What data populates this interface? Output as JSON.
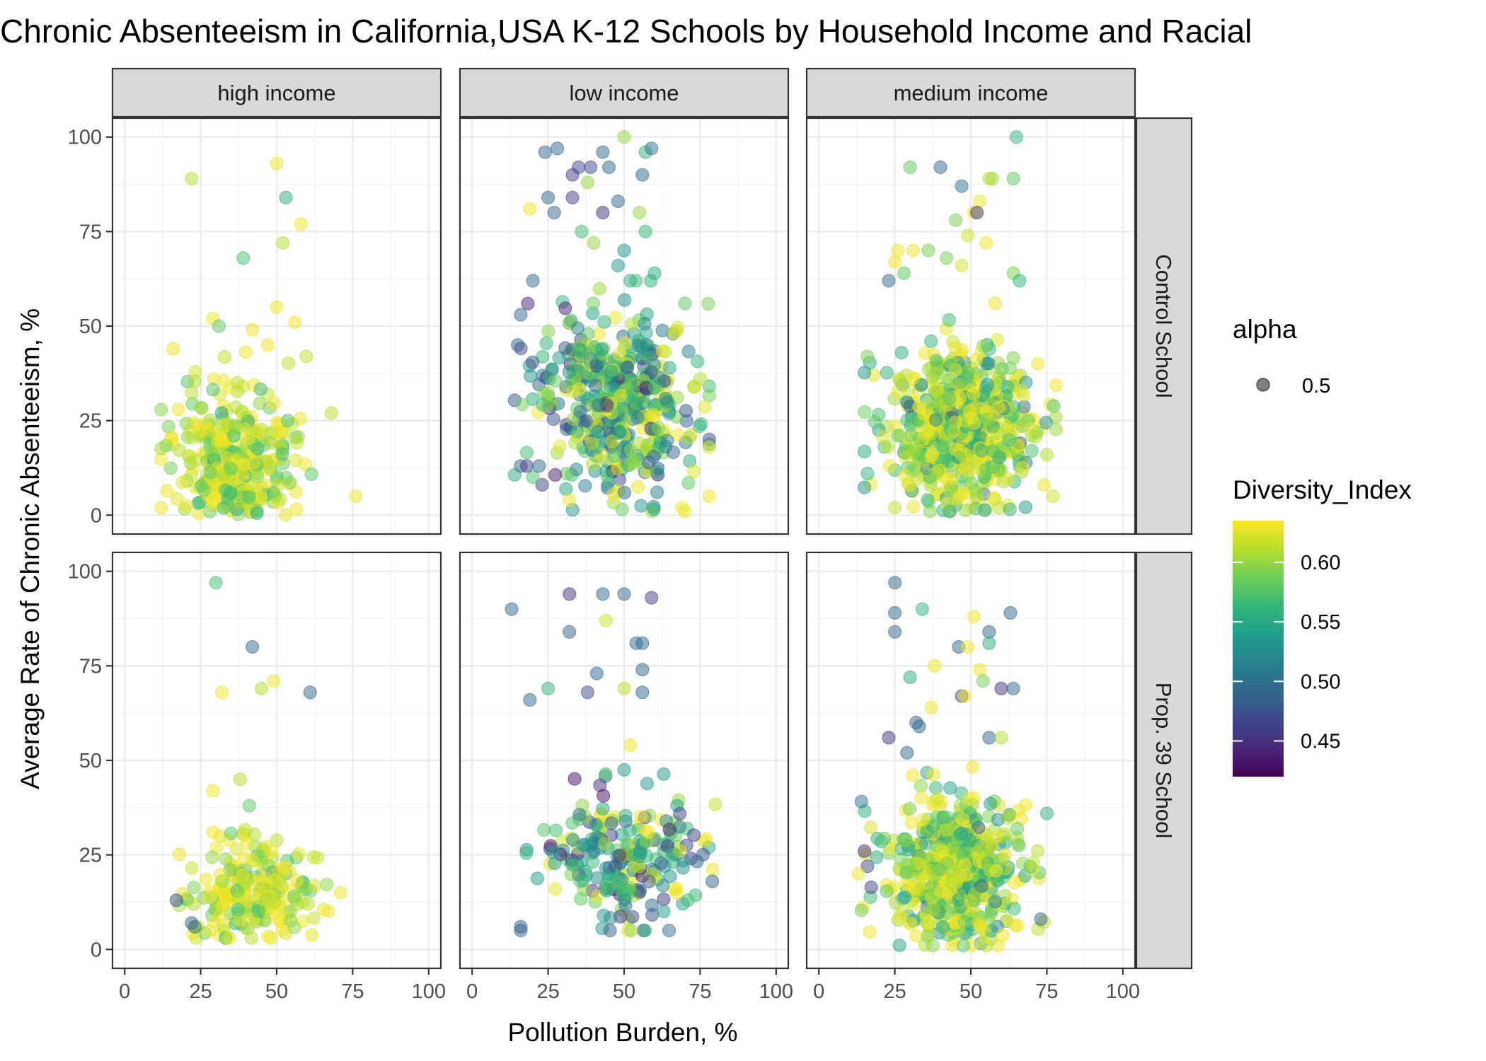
{
  "chart_data": {
    "type": "scatter",
    "title": "Chronic Absenteeism in California,USA K-12 Schools by Household Income and Racial",
    "xlabel": "Pollution Burden, %",
    "ylabel": "Average Rate of Chronic Absenteeism, %",
    "xlim": [
      -4,
      104
    ],
    "ylim": [
      -5,
      105
    ],
    "x_ticks": [
      0,
      25,
      50,
      75,
      100
    ],
    "y_ticks": [
      0,
      25,
      50,
      75,
      100
    ],
    "grid": true,
    "theme": "bw",
    "facet_columns": [
      "high income",
      "low income",
      "medium income"
    ],
    "facet_rows": [
      "Control School",
      "Prop. 39 School"
    ],
    "legend_position": "right",
    "color_scale": {
      "name": "viridis",
      "domain": [
        0.42,
        0.635
      ],
      "stops": [
        "#440154",
        "#482878",
        "#3e4989",
        "#31688e",
        "#26828e",
        "#1f9e89",
        "#35b779",
        "#6ece58",
        "#b5de2b",
        "#fde725"
      ]
    },
    "legend": {
      "alpha": {
        "title": "alpha",
        "label": "0.5"
      },
      "color": {
        "title": "Diversity_Index",
        "breaks": [
          0.45,
          0.5,
          0.55,
          0.6
        ],
        "labels": [
          "0.45",
          "0.50",
          "0.55",
          "0.60"
        ]
      }
    },
    "point_alpha": 0.5,
    "panels": [
      {
        "column": "high income",
        "row": "Control School",
        "cluster": {
          "n": 320,
          "x_mean": 36,
          "x_sd": 10,
          "x_range": [
            12,
            72
          ],
          "y_mean": 15,
          "y_sd": 9,
          "y_range": [
            0,
            50
          ],
          "c_mean": 0.612,
          "c_sd": 0.03,
          "c_range": [
            0.44,
            0.63
          ],
          "seed": 11
        },
        "points": [
          {
            "x": 22,
            "y": 89,
            "c": 0.61
          },
          {
            "x": 50,
            "y": 93,
            "c": 0.63
          },
          {
            "x": 53,
            "y": 84,
            "c": 0.55
          },
          {
            "x": 58,
            "y": 77,
            "c": 0.63
          },
          {
            "x": 52,
            "y": 72,
            "c": 0.61
          },
          {
            "x": 39,
            "y": 68,
            "c": 0.57
          },
          {
            "x": 50,
            "y": 55,
            "c": 0.63
          },
          {
            "x": 56,
            "y": 51,
            "c": 0.63
          },
          {
            "x": 29,
            "y": 52,
            "c": 0.63
          },
          {
            "x": 42,
            "y": 49,
            "c": 0.63
          },
          {
            "x": 31,
            "y": 50,
            "c": 0.58
          },
          {
            "x": 16,
            "y": 44,
            "c": 0.63
          },
          {
            "x": 47,
            "y": 45,
            "c": 0.63
          },
          {
            "x": 76,
            "y": 5,
            "c": 0.63
          },
          {
            "x": 68,
            "y": 27,
            "c": 0.61
          }
        ]
      },
      {
        "column": "low income",
        "row": "Control School",
        "cluster": {
          "n": 460,
          "x_mean": 47,
          "x_sd": 13,
          "x_range": [
            14,
            78
          ],
          "y_mean": 30,
          "y_sd": 12,
          "y_range": [
            1,
            62
          ],
          "c_mean": 0.56,
          "c_sd": 0.06,
          "c_range": [
            0.44,
            0.63
          ],
          "seed": 22
        },
        "points": [
          {
            "x": 50,
            "y": 100,
            "c": 0.6
          },
          {
            "x": 24,
            "y": 96,
            "c": 0.49
          },
          {
            "x": 28,
            "y": 97,
            "c": 0.49
          },
          {
            "x": 43,
            "y": 96,
            "c": 0.49
          },
          {
            "x": 57,
            "y": 96,
            "c": 0.56
          },
          {
            "x": 59,
            "y": 97,
            "c": 0.5
          },
          {
            "x": 35,
            "y": 92,
            "c": 0.47
          },
          {
            "x": 39,
            "y": 92,
            "c": 0.47
          },
          {
            "x": 45,
            "y": 92,
            "c": 0.49
          },
          {
            "x": 33,
            "y": 90,
            "c": 0.46
          },
          {
            "x": 38,
            "y": 88,
            "c": 0.6
          },
          {
            "x": 56,
            "y": 90,
            "c": 0.49
          },
          {
            "x": 25,
            "y": 84,
            "c": 0.49
          },
          {
            "x": 33,
            "y": 84,
            "c": 0.46
          },
          {
            "x": 48,
            "y": 83,
            "c": 0.49
          },
          {
            "x": 27,
            "y": 80,
            "c": 0.49
          },
          {
            "x": 19,
            "y": 81,
            "c": 0.63
          },
          {
            "x": 43,
            "y": 80,
            "c": 0.45
          },
          {
            "x": 55,
            "y": 80,
            "c": 0.6
          },
          {
            "x": 36,
            "y": 75,
            "c": 0.57
          },
          {
            "x": 57,
            "y": 75,
            "c": 0.56
          },
          {
            "x": 40,
            "y": 72,
            "c": 0.6
          },
          {
            "x": 50,
            "y": 70,
            "c": 0.53
          },
          {
            "x": 48,
            "y": 66,
            "c": 0.53
          },
          {
            "x": 20,
            "y": 62,
            "c": 0.49
          },
          {
            "x": 60,
            "y": 64,
            "c": 0.55
          },
          {
            "x": 70,
            "y": 56,
            "c": 0.58
          },
          {
            "x": 16,
            "y": 53,
            "c": 0.49
          },
          {
            "x": 15,
            "y": 45,
            "c": 0.48
          },
          {
            "x": 16,
            "y": 13,
            "c": 0.49
          },
          {
            "x": 18,
            "y": 13,
            "c": 0.46
          },
          {
            "x": 22,
            "y": 13,
            "c": 0.49
          },
          {
            "x": 78,
            "y": 5,
            "c": 0.63
          },
          {
            "x": 70,
            "y": 1,
            "c": 0.63
          },
          {
            "x": 69,
            "y": 2,
            "c": 0.63
          },
          {
            "x": 75,
            "y": 36,
            "c": 0.61
          }
        ]
      },
      {
        "column": "medium income",
        "row": "Control School",
        "cluster": {
          "n": 620,
          "x_mean": 47,
          "x_sd": 12,
          "x_range": [
            15,
            78
          ],
          "y_mean": 23,
          "y_sd": 10,
          "y_range": [
            1,
            60
          ],
          "c_mean": 0.6,
          "c_sd": 0.045,
          "c_range": [
            0.44,
            0.63
          ],
          "seed": 33
        },
        "points": [
          {
            "x": 65,
            "y": 100,
            "c": 0.56
          },
          {
            "x": 30,
            "y": 92,
            "c": 0.58
          },
          {
            "x": 40,
            "y": 92,
            "c": 0.49
          },
          {
            "x": 57,
            "y": 89,
            "c": 0.6
          },
          {
            "x": 56,
            "y": 89,
            "c": 0.61
          },
          {
            "x": 64,
            "y": 89,
            "c": 0.58
          },
          {
            "x": 47,
            "y": 87,
            "c": 0.5
          },
          {
            "x": 53,
            "y": 83,
            "c": 0.63
          },
          {
            "x": 51,
            "y": 80,
            "c": 0.63
          },
          {
            "x": 52,
            "y": 80,
            "c": 0.45
          },
          {
            "x": 45,
            "y": 78,
            "c": 0.59
          },
          {
            "x": 49,
            "y": 74,
            "c": 0.62
          },
          {
            "x": 55,
            "y": 72,
            "c": 0.63
          },
          {
            "x": 26,
            "y": 70,
            "c": 0.63
          },
          {
            "x": 31,
            "y": 70,
            "c": 0.63
          },
          {
            "x": 36,
            "y": 70,
            "c": 0.59
          },
          {
            "x": 42,
            "y": 68,
            "c": 0.59
          },
          {
            "x": 25,
            "y": 67,
            "c": 0.63
          },
          {
            "x": 47,
            "y": 66,
            "c": 0.62
          },
          {
            "x": 23,
            "y": 62,
            "c": 0.5
          },
          {
            "x": 28,
            "y": 64,
            "c": 0.58
          },
          {
            "x": 64,
            "y": 64,
            "c": 0.59
          },
          {
            "x": 66,
            "y": 62,
            "c": 0.56
          },
          {
            "x": 58,
            "y": 56,
            "c": 0.63
          },
          {
            "x": 16,
            "y": 42,
            "c": 0.59
          },
          {
            "x": 16,
            "y": 11,
            "c": 0.56
          },
          {
            "x": 77,
            "y": 5,
            "c": 0.62
          },
          {
            "x": 43,
            "y": 1,
            "c": 0.55
          },
          {
            "x": 75,
            "y": 16,
            "c": 0.61
          },
          {
            "x": 72,
            "y": 40,
            "c": 0.63
          }
        ]
      },
      {
        "column": "high income",
        "row": "Prop. 39 School",
        "cluster": {
          "n": 210,
          "x_mean": 42,
          "x_sd": 10,
          "x_range": [
            18,
            70
          ],
          "y_mean": 15,
          "y_sd": 7,
          "y_range": [
            3,
            36
          ],
          "c_mean": 0.612,
          "c_sd": 0.03,
          "c_range": [
            0.44,
            0.63
          ],
          "seed": 44
        },
        "points": [
          {
            "x": 30,
            "y": 97,
            "c": 0.57
          },
          {
            "x": 42,
            "y": 80,
            "c": 0.49
          },
          {
            "x": 49,
            "y": 71,
            "c": 0.63
          },
          {
            "x": 45,
            "y": 69,
            "c": 0.61
          },
          {
            "x": 32,
            "y": 68,
            "c": 0.63
          },
          {
            "x": 61,
            "y": 68,
            "c": 0.49
          },
          {
            "x": 38,
            "y": 45,
            "c": 0.61
          },
          {
            "x": 29,
            "y": 42,
            "c": 0.63
          },
          {
            "x": 41,
            "y": 38,
            "c": 0.58
          },
          {
            "x": 17,
            "y": 13,
            "c": 0.47
          },
          {
            "x": 71,
            "y": 15,
            "c": 0.63
          },
          {
            "x": 23,
            "y": 6,
            "c": 0.5
          },
          {
            "x": 22,
            "y": 7,
            "c": 0.49
          }
        ]
      },
      {
        "column": "low income",
        "row": "Prop. 39 School",
        "cluster": {
          "n": 220,
          "x_mean": 49,
          "x_sd": 13,
          "x_range": [
            15,
            80
          ],
          "y_mean": 24,
          "y_sd": 9,
          "y_range": [
            5,
            54
          ],
          "c_mean": 0.545,
          "c_sd": 0.065,
          "c_range": [
            0.43,
            0.63
          ],
          "seed": 55
        },
        "points": [
          {
            "x": 13,
            "y": 90,
            "c": 0.49
          },
          {
            "x": 32,
            "y": 94,
            "c": 0.45
          },
          {
            "x": 43,
            "y": 94,
            "c": 0.49
          },
          {
            "x": 50,
            "y": 94,
            "c": 0.49
          },
          {
            "x": 59,
            "y": 93,
            "c": 0.46
          },
          {
            "x": 44,
            "y": 87,
            "c": 0.62
          },
          {
            "x": 32,
            "y": 84,
            "c": 0.49
          },
          {
            "x": 54,
            "y": 81,
            "c": 0.49
          },
          {
            "x": 56,
            "y": 81,
            "c": 0.49
          },
          {
            "x": 41,
            "y": 73,
            "c": 0.49
          },
          {
            "x": 56,
            "y": 74,
            "c": 0.49
          },
          {
            "x": 25,
            "y": 69,
            "c": 0.56
          },
          {
            "x": 38,
            "y": 68,
            "c": 0.47
          },
          {
            "x": 50,
            "y": 69,
            "c": 0.61
          },
          {
            "x": 56,
            "y": 68,
            "c": 0.49
          },
          {
            "x": 19,
            "y": 66,
            "c": 0.49
          },
          {
            "x": 16,
            "y": 6,
            "c": 0.48
          },
          {
            "x": 16,
            "y": 5,
            "c": 0.49
          },
          {
            "x": 79,
            "y": 18,
            "c": 0.49
          },
          {
            "x": 71,
            "y": 13,
            "c": 0.57
          },
          {
            "x": 52,
            "y": 54,
            "c": 0.63
          }
        ]
      },
      {
        "column": "medium income",
        "row": "Prop. 39 School",
        "cluster": {
          "n": 520,
          "x_mean": 45,
          "x_sd": 11,
          "x_range": [
            14,
            76
          ],
          "y_mean": 20,
          "y_sd": 9,
          "y_range": [
            1,
            52
          ],
          "c_mean": 0.605,
          "c_sd": 0.045,
          "c_range": [
            0.43,
            0.63
          ],
          "seed": 66
        },
        "points": [
          {
            "x": 25,
            "y": 97,
            "c": 0.49
          },
          {
            "x": 25,
            "y": 89,
            "c": 0.49
          },
          {
            "x": 34,
            "y": 90,
            "c": 0.56
          },
          {
            "x": 63,
            "y": 89,
            "c": 0.49
          },
          {
            "x": 51,
            "y": 88,
            "c": 0.63
          },
          {
            "x": 56,
            "y": 84,
            "c": 0.49
          },
          {
            "x": 25,
            "y": 84,
            "c": 0.49
          },
          {
            "x": 56,
            "y": 81,
            "c": 0.55
          },
          {
            "x": 46,
            "y": 80,
            "c": 0.49
          },
          {
            "x": 49,
            "y": 80,
            "c": 0.63
          },
          {
            "x": 38,
            "y": 75,
            "c": 0.63
          },
          {
            "x": 53,
            "y": 74,
            "c": 0.63
          },
          {
            "x": 54,
            "y": 71,
            "c": 0.59
          },
          {
            "x": 30,
            "y": 72,
            "c": 0.55
          },
          {
            "x": 60,
            "y": 69,
            "c": 0.45
          },
          {
            "x": 64,
            "y": 69,
            "c": 0.49
          },
          {
            "x": 47,
            "y": 67,
            "c": 0.46
          },
          {
            "x": 48,
            "y": 67,
            "c": 0.63
          },
          {
            "x": 37,
            "y": 64,
            "c": 0.63
          },
          {
            "x": 32,
            "y": 60,
            "c": 0.49
          },
          {
            "x": 33,
            "y": 59,
            "c": 0.49
          },
          {
            "x": 23,
            "y": 56,
            "c": 0.45
          },
          {
            "x": 56,
            "y": 56,
            "c": 0.49
          },
          {
            "x": 60,
            "y": 56,
            "c": 0.61
          },
          {
            "x": 29,
            "y": 52,
            "c": 0.49
          },
          {
            "x": 15,
            "y": 26,
            "c": 0.45
          },
          {
            "x": 16,
            "y": 22,
            "c": 0.47
          },
          {
            "x": 75,
            "y": 36,
            "c": 0.56
          },
          {
            "x": 73,
            "y": 8,
            "c": 0.49
          },
          {
            "x": 13,
            "y": 20,
            "c": 0.63
          }
        ]
      }
    ]
  }
}
